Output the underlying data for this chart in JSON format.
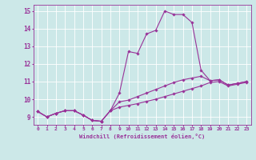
{
  "xlabel": "Windchill (Refroidissement éolien,°C)",
  "bg_color": "#cce8e8",
  "line_color": "#993399",
  "grid_color": "#aacccc",
  "x_ticks": [
    0,
    1,
    2,
    3,
    4,
    5,
    6,
    7,
    8,
    9,
    10,
    11,
    12,
    13,
    14,
    15,
    16,
    17,
    18,
    19,
    20,
    21,
    22,
    23
  ],
  "y_ticks": [
    9,
    10,
    11,
    12,
    13,
    14,
    15
  ],
  "ylim": [
    8.55,
    15.35
  ],
  "xlim": [
    -0.5,
    23.5
  ],
  "series": [
    [
      9.3,
      9.0,
      9.2,
      9.35,
      9.35,
      9.1,
      8.8,
      8.75,
      9.35,
      10.35,
      12.7,
      12.6,
      13.7,
      13.9,
      15.0,
      14.8,
      14.8,
      14.35,
      11.65,
      11.05,
      11.1,
      10.8,
      10.9,
      11.0
    ],
    [
      9.3,
      9.0,
      9.2,
      9.35,
      9.35,
      9.1,
      8.8,
      8.75,
      9.35,
      9.85,
      9.95,
      10.15,
      10.35,
      10.55,
      10.75,
      10.95,
      11.1,
      11.2,
      11.3,
      11.05,
      11.1,
      10.8,
      10.9,
      11.0
    ],
    [
      9.3,
      9.0,
      9.2,
      9.35,
      9.35,
      9.1,
      8.8,
      8.75,
      9.35,
      9.55,
      9.65,
      9.75,
      9.88,
      10.0,
      10.15,
      10.3,
      10.45,
      10.6,
      10.75,
      10.95,
      11.0,
      10.75,
      10.85,
      10.95
    ]
  ]
}
